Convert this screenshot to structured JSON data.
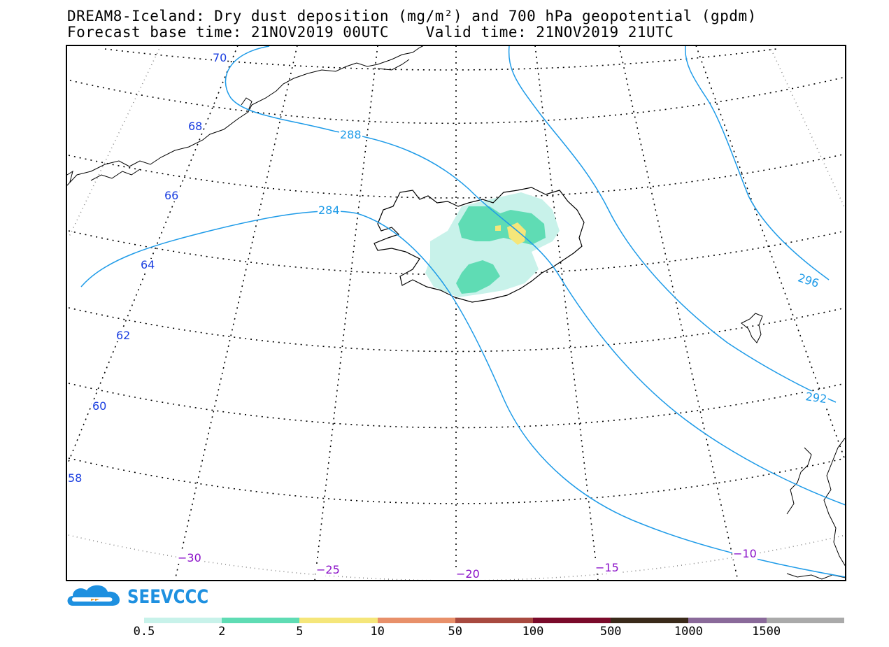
{
  "title": {
    "line1": "DREAM8-Iceland: Dry dust deposition (mg/m²) and 700 hPa geopotential (gpdm)",
    "line2": "Forecast base time: 21NOV2019 00UTC    Valid time: 21NOV2019 21UTC"
  },
  "map": {
    "lat_labels": [
      "70",
      "68",
      "66",
      "64",
      "62",
      "60",
      "58"
    ],
    "lon_labels": [
      "-30",
      "-25",
      "-20",
      "-15",
      "-10"
    ],
    "contour_labels": [
      "288",
      "284",
      "296",
      "292"
    ],
    "contour_color": "#1e9be8",
    "lat_label_color": "#1a3ee0",
    "lon_label_color": "#8a10c8",
    "dust_colors": {
      "c0_5": "#c8f2ea",
      "c2": "#5fdcb4",
      "c5": "#f5e67a"
    }
  },
  "logo": {
    "text": "SEEVCCC",
    "color": "#1e90e0"
  },
  "colorbar": {
    "labels": [
      "0.5",
      "2",
      "5",
      "10",
      "50",
      "100",
      "500",
      "1000",
      "1500"
    ],
    "colors": [
      "#c8f2ea",
      "#5fdcb4",
      "#f5e67a",
      "#e8906a",
      "#a84a40",
      "#7a0a2a",
      "#3a2a1a",
      "#8a6a9a",
      "#aaaaaa"
    ]
  }
}
